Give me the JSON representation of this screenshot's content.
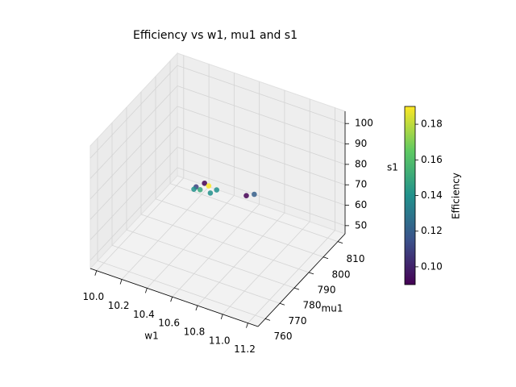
{
  "chart_data": {
    "type": "scatter3d",
    "title": "Efficiency vs w1, mu1 and s1",
    "xlabel": "w1",
    "ylabel": "mu1",
    "zlabel": "s1",
    "colorbar_label": "Efficiency",
    "x": [
      10.43,
      10.4,
      10.4,
      10.44,
      10.47,
      10.54,
      10.52,
      10.75,
      10.79
    ],
    "y": [
      792,
      788.8,
      787.3,
      788.1,
      791.4,
      790.8,
      788.2,
      793,
      795
    ],
    "z": [
      70,
      70,
      70,
      70,
      70,
      70,
      70,
      70,
      70
    ],
    "values": [
      0.09,
      0.11,
      0.14,
      0.15,
      0.19,
      0.14,
      0.14,
      0.09,
      0.12
    ],
    "xlim": [
      9.95,
      11.28
    ],
    "ylim": [
      755,
      815
    ],
    "zlim": [
      46,
      106
    ],
    "xticks": [
      {
        "value": 10,
        "label": "10.0"
      },
      10.2,
      10.4,
      10.6,
      10.8,
      {
        "value": 11,
        "label": "11.0"
      },
      11.2
    ],
    "yticks": [
      760,
      770,
      780,
      790,
      800,
      810
    ],
    "zticks": [
      50,
      60,
      70,
      80,
      90,
      100
    ],
    "clim": [
      0.09,
      0.19
    ],
    "cticks": [
      {
        "value": 0.1,
        "label": "0.10"
      },
      0.12,
      0.14,
      0.16,
      0.18
    ],
    "colormap": [
      "#440154",
      "#3b528b",
      "#21918c",
      "#5ec962",
      "#fde725"
    ],
    "grid": true
  }
}
